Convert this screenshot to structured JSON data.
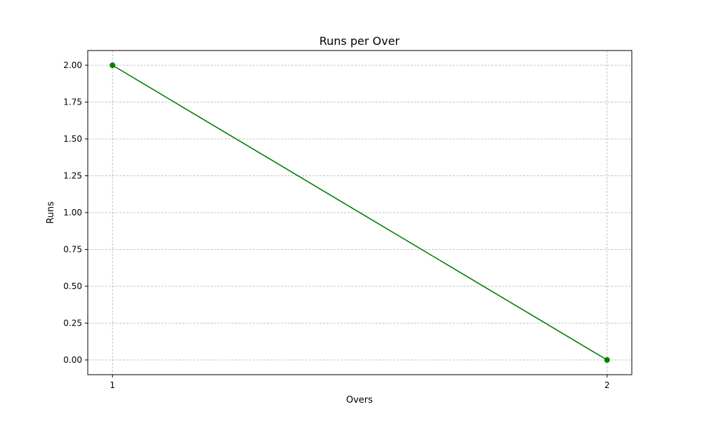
{
  "chart_data": {
    "type": "line",
    "title": "Runs per Over",
    "xlabel": "Overs",
    "ylabel": "Runs",
    "x": [
      1,
      2
    ],
    "series": [
      {
        "values": [
          2.0,
          0.0
        ],
        "color": "#008000",
        "marker": "circle"
      }
    ],
    "xlim": [
      0.95,
      2.05
    ],
    "ylim": [
      -0.1,
      2.1
    ],
    "x_ticks": [
      "1",
      "2"
    ],
    "y_ticks": [
      "0.00",
      "0.25",
      "0.50",
      "0.75",
      "1.00",
      "1.25",
      "1.50",
      "1.75",
      "2.00"
    ],
    "grid": true,
    "grid_style": "dashed",
    "legend": "none"
  }
}
